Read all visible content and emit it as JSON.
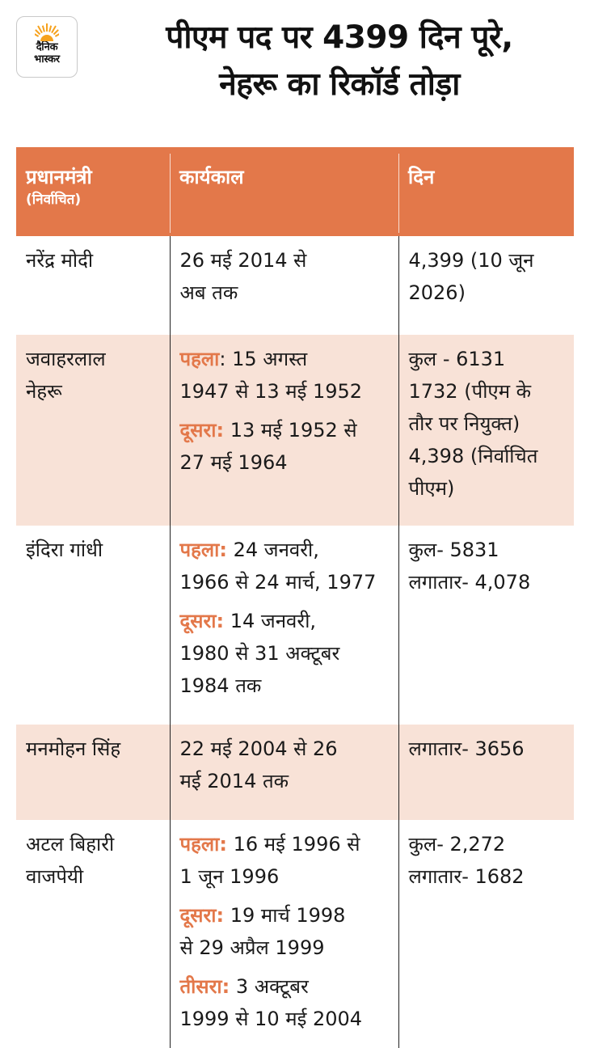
{
  "brand": {
    "logo_line1": "दैनिक",
    "logo_line2": "भास्कर",
    "sun_color": "#f6a21e"
  },
  "headline": {
    "line1": "पीएम पद पर 4399 दिन पूरे,",
    "line2": "नेहरू का रिकॉर्ड तोड़ा"
  },
  "colors": {
    "header_bg": "#e3784a",
    "accent_label": "#e3784a",
    "row_shade": "#f8e2d7"
  },
  "table": {
    "headers": {
      "pm": "प्रधानमंत्री",
      "pm_sub": "(निर्वाचित)",
      "tenure": "कार्यकाल",
      "days": "दिन"
    },
    "rows": [
      {
        "name": "नरेंद्र मोदी",
        "terms": [
          {
            "label": "",
            "lines": [
              "26 मई 2014 से",
              "अब तक"
            ]
          }
        ],
        "days": [
          "4,399 (10 जून",
          "2026)"
        ]
      },
      {
        "name": "जवाहरलाल नेहरू",
        "terms": [
          {
            "label": "पहला",
            "sep": ":",
            "lines": [
              " 15 अगस्त",
              "1947 से 13 मई 1952"
            ]
          },
          {
            "label": "दूसरा:",
            "sep": "",
            "lines": [
              " 13 मई 1952 से",
              "27 मई 1964"
            ]
          }
        ],
        "days": [
          "कुल - 6131",
          "1732 (पीएम के",
          "तौर पर नियुक्त)",
          "4,398 (निर्वाचित",
          "पीएम)"
        ]
      },
      {
        "name": "इंदिरा गांधी",
        "terms": [
          {
            "label": "पहला:",
            "sep": "",
            "lines": [
              " 24 जनवरी,",
              "1966 से 24 मार्च, 1977"
            ]
          },
          {
            "label": "दूसरा:",
            "sep": "",
            "lines": [
              " 14 जनवरी,",
              "1980 से 31 अक्टूबर",
              "1984 तक"
            ]
          }
        ],
        "days": [
          "कुल- 5831",
          "लगातार- 4,078"
        ]
      },
      {
        "name": "मनमोहन सिंह",
        "terms": [
          {
            "label": "",
            "lines": [
              "22 मई 2004 से 26",
              "मई 2014 तक"
            ]
          }
        ],
        "days": [
          "लगातार- 3656"
        ]
      },
      {
        "name": "अटल बिहारी वाजपेयी",
        "terms": [
          {
            "label": "पहला:",
            "sep": "",
            "lines": [
              " 16 मई 1996 से",
              "1 जून 1996"
            ]
          },
          {
            "label": "दूसरा:",
            "sep": "",
            "lines": [
              " 19 मार्च 1998",
              "से 29 अप्रैल 1999"
            ]
          },
          {
            "label": "तीसरा:",
            "sep": "",
            "lines": [
              " 3 अक्टूबर",
              "1999 से 10 मई 2004"
            ]
          }
        ],
        "days": [
          "कुल- 2,272",
          "लगातार- 1682"
        ]
      }
    ]
  }
}
